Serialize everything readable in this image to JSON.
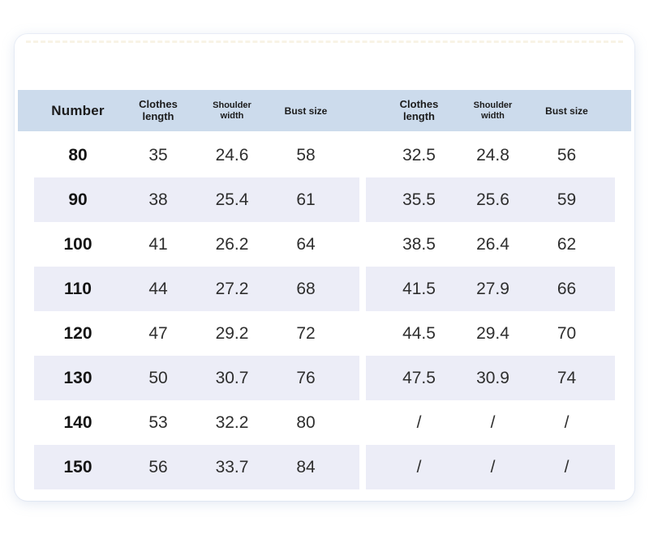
{
  "header": {
    "columns": [
      {
        "id": "number",
        "label": "Number"
      },
      {
        "id": "clothes-length-left",
        "label": "Clothes length"
      },
      {
        "id": "shoulder-width-left",
        "label": "Shoulder width"
      },
      {
        "id": "bust-size-left",
        "label": "Bust size"
      },
      {
        "id": "clothes-length-right",
        "label": "Clothes length"
      },
      {
        "id": "shoulder-width-right",
        "label": "Shoulder width"
      },
      {
        "id": "bust-size-right",
        "label": "Bust size"
      }
    ]
  },
  "rows": [
    {
      "number": "80",
      "left": [
        "35",
        "24.6",
        "58"
      ],
      "right": [
        "32.5",
        "24.8",
        "56"
      ]
    },
    {
      "number": "90",
      "left": [
        "38",
        "25.4",
        "61"
      ],
      "right": [
        "35.5",
        "25.6",
        "59"
      ]
    },
    {
      "number": "100",
      "left": [
        "41",
        "26.2",
        "64"
      ],
      "right": [
        "38.5",
        "26.4",
        "62"
      ]
    },
    {
      "number": "110",
      "left": [
        "44",
        "27.2",
        "68"
      ],
      "right": [
        "41.5",
        "27.9",
        "66"
      ]
    },
    {
      "number": "120",
      "left": [
        "47",
        "29.2",
        "72"
      ],
      "right": [
        "44.5",
        "29.4",
        "70"
      ]
    },
    {
      "number": "130",
      "left": [
        "50",
        "30.7",
        "76"
      ],
      "right": [
        "47.5",
        "30.9",
        "74"
      ]
    },
    {
      "number": "140",
      "left": [
        "53",
        "32.2",
        "80"
      ],
      "right": [
        "/",
        "/",
        "/"
      ]
    },
    {
      "number": "150",
      "left": [
        "56",
        "33.7",
        "84"
      ],
      "right": [
        "/",
        "/",
        "/"
      ]
    }
  ],
  "colors": {
    "header_bg": "#ccdbec",
    "stripe_bg": "#ecedf7",
    "card_bg": "#ffffff",
    "text": "#2e2e2e",
    "bold_text": "#141414"
  }
}
